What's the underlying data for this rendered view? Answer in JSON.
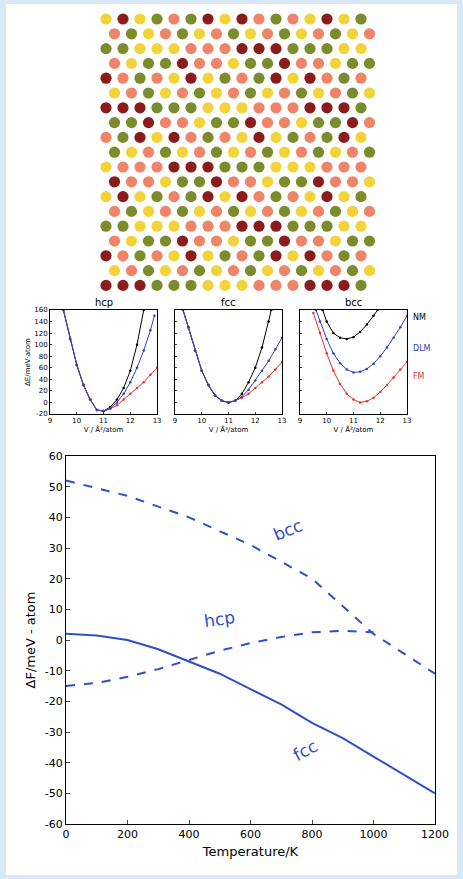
{
  "chart_data": [
    {
      "type": "line",
      "title": "hcp",
      "x_label": "V / Å³/atom",
      "y_label": "ΔE/meV·atom",
      "xlim": [
        9,
        13
      ],
      "xticks": [
        9,
        10,
        11,
        12,
        13
      ],
      "ylim": [
        -20,
        160
      ],
      "yticks": [
        -20,
        0,
        20,
        40,
        60,
        80,
        100,
        120,
        140,
        160
      ],
      "grid": false,
      "series": [
        {
          "color": "#000000",
          "marker": "circle",
          "line_style": "solid",
          "x": [
            9.5,
            9.75,
            10,
            10.25,
            10.5,
            10.75,
            11,
            11.25,
            11.5,
            11.75,
            12,
            12.25,
            12.5
          ],
          "values": [
            160,
            110,
            65,
            30,
            5,
            -13,
            -15,
            -8,
            5,
            25,
            55,
            100,
            160
          ]
        },
        {
          "color": "#e8332a",
          "marker": "circle",
          "line_style": "solid",
          "x": [
            9.5,
            9.75,
            10,
            10.25,
            10.5,
            10.75,
            11,
            11.25,
            11.5,
            11.75,
            12,
            12.25,
            12.5,
            12.75,
            13
          ],
          "values": [
            160,
            110,
            65,
            30,
            5,
            -13,
            -15,
            -11,
            -5,
            5,
            15,
            25,
            35,
            48,
            60
          ]
        },
        {
          "color": "#2a44c8",
          "marker": "circle",
          "line_style": "solid",
          "x": [
            9.5,
            9.75,
            10,
            10.25,
            10.5,
            10.75,
            11,
            11.25,
            11.5,
            11.75,
            12,
            12.25,
            12.5,
            12.75,
            12.9
          ],
          "values": [
            160,
            110,
            65,
            30,
            5,
            -13,
            -15,
            -10,
            0,
            15,
            35,
            60,
            90,
            125,
            150
          ]
        }
      ]
    },
    {
      "type": "line",
      "title": "fcc",
      "x_label": "V / Å³/atom",
      "xlim": [
        9,
        13
      ],
      "xticks": [
        9,
        10,
        11,
        12,
        13
      ],
      "ylim": [
        -20,
        160
      ],
      "yticks": [
        -20,
        0,
        20,
        40,
        60,
        80,
        100,
        120,
        140,
        160
      ],
      "grid": false,
      "tick_labels": "x",
      "series": [
        {
          "color": "#000000",
          "marker": "circle",
          "line_style": "solid",
          "x": [
            9.3,
            9.5,
            9.75,
            10,
            10.25,
            10.5,
            10.75,
            11,
            11.25,
            11.5,
            11.75,
            12,
            12.25,
            12.5,
            12.6
          ],
          "values": [
            160,
            130,
            90,
            55,
            30,
            12,
            3,
            0,
            3,
            15,
            35,
            60,
            95,
            140,
            160
          ]
        },
        {
          "color": "#e8332a",
          "marker": "circle",
          "line_style": "solid",
          "x": [
            9.3,
            9.5,
            9.75,
            10,
            10.25,
            10.5,
            10.75,
            11,
            11.25,
            11.5,
            11.75,
            12,
            12.25,
            12.5,
            12.75,
            13
          ],
          "values": [
            160,
            130,
            90,
            55,
            30,
            12,
            3,
            0,
            3,
            8,
            15,
            25,
            35,
            45,
            57,
            70
          ]
        },
        {
          "color": "#2a44c8",
          "marker": "circle",
          "line_style": "solid",
          "x": [
            9.3,
            9.5,
            9.75,
            10,
            10.25,
            10.5,
            10.75,
            11,
            11.25,
            11.5,
            11.75,
            12,
            12.25,
            12.5,
            12.75,
            13
          ],
          "values": [
            160,
            130,
            90,
            55,
            30,
            12,
            3,
            0,
            3,
            10,
            22,
            38,
            55,
            72,
            92,
            112
          ]
        }
      ]
    },
    {
      "type": "line",
      "title": "bcc",
      "x_label": "V / Å³/atom",
      "xlim": [
        9,
        13
      ],
      "xticks": [
        9,
        10,
        11,
        12,
        13
      ],
      "ylim": [
        -20,
        160
      ],
      "yticks": [
        -20,
        0,
        20,
        40,
        60,
        80,
        100,
        120,
        140,
        160
      ],
      "grid": false,
      "tick_labels": "x",
      "legend": "right",
      "series": [
        {
          "name": "NM",
          "color": "#000000",
          "marker": "circle",
          "line_style": "solid",
          "x": [
            9.85,
            10,
            10.25,
            10.5,
            10.75,
            11,
            11.25,
            11.5,
            11.75,
            11.9
          ],
          "values": [
            160,
            140,
            120,
            112,
            110,
            113,
            122,
            135,
            150,
            160
          ]
        },
        {
          "name": "DLM",
          "color": "#2a44c8",
          "marker": "circle",
          "line_style": "solid",
          "x": [
            9.6,
            9.75,
            10,
            10.25,
            10.5,
            10.75,
            11,
            11.25,
            11.5,
            11.75,
            12,
            12.25,
            12.5,
            12.75,
            13
          ],
          "values": [
            160,
            140,
            110,
            85,
            68,
            57,
            52,
            53,
            58,
            67,
            80,
            95,
            112,
            130,
            150
          ]
        },
        {
          "name": "FM",
          "color": "#e8332a",
          "marker": "circle",
          "line_style": "solid",
          "x": [
            9.5,
            9.75,
            10,
            10.25,
            10.5,
            10.75,
            11,
            11.25,
            11.5,
            11.75,
            12,
            12.25,
            12.5,
            12.75,
            13
          ],
          "values": [
            155,
            120,
            85,
            55,
            32,
            15,
            5,
            0,
            2,
            8,
            18,
            30,
            43,
            57,
            70
          ]
        }
      ]
    },
    {
      "type": "line",
      "x_label": "Temperature/K",
      "y_label": "ΔF/meV - atom",
      "xlim": [
        0,
        1200
      ],
      "xticks": [
        0,
        200,
        400,
        600,
        800,
        1000,
        1200
      ],
      "ylim": [
        -60,
        60
      ],
      "yticks": [
        -60,
        -50,
        -40,
        -30,
        -20,
        -10,
        0,
        10,
        20,
        30,
        40,
        50,
        60
      ],
      "grid": false,
      "series": [
        {
          "color": "#2f4fc8",
          "line_style": "dash",
          "x": [
            0,
            200,
            400,
            600,
            800,
            1000,
            1200
          ],
          "values": [
            52,
            47,
            40,
            31,
            20,
            2,
            -11
          ]
        },
        {
          "color": "#2f4fc8",
          "line_style": "dash",
          "x": [
            0,
            100,
            200,
            300,
            400,
            500,
            600,
            700,
            800,
            900,
            1000
          ],
          "values": [
            -15,
            -14,
            -12,
            -9.5,
            -6.5,
            -3.5,
            -1,
            1,
            2.5,
            3,
            2.5
          ]
        },
        {
          "color": "#2f4fc8",
          "line_style": "solid",
          "x": [
            0,
            100,
            200,
            300,
            400,
            500,
            600,
            700,
            800,
            900,
            1000,
            1100,
            1200
          ],
          "values": [
            2,
            1.5,
            0,
            -3,
            -7,
            -11,
            -16,
            -21,
            -27,
            -32,
            -38,
            -44,
            -50
          ]
        }
      ],
      "annotations": [
        {
          "text": "bcc",
          "x": 720,
          "y": 36
        },
        {
          "text": "hcp",
          "x": 500,
          "y": 7
        },
        {
          "text": "fcc",
          "x": 780,
          "y": -36
        }
      ]
    }
  ]
}
